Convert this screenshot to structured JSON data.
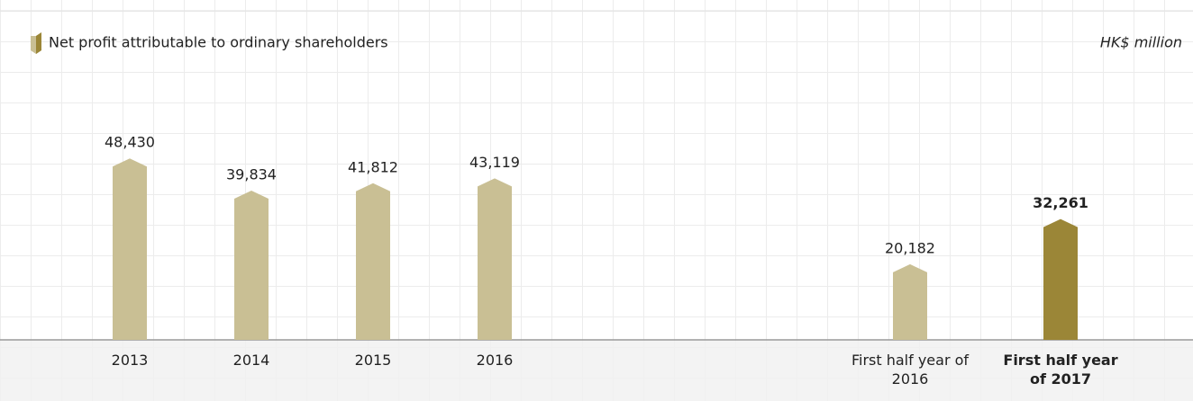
{
  "chart_data": {
    "type": "bar",
    "title": "Net profit attributable to ordinary shareholders",
    "unit_label": "HK$ million",
    "categories": [
      "2013",
      "2014",
      "2015",
      "2016",
      "First half year of 2016",
      "First half year of 2017"
    ],
    "values": [
      48430,
      39834,
      41812,
      43119,
      20182,
      32261
    ],
    "value_labels": [
      "48,430",
      "39,834",
      "41,812",
      "43,119",
      "20,182",
      "32,261"
    ],
    "colors": [
      "#c9bf94",
      "#c9bf94",
      "#c9bf94",
      "#c9bf94",
      "#c9bf94",
      "#9b8637"
    ],
    "highlight": [
      false,
      false,
      false,
      false,
      false,
      true
    ],
    "ylim": [
      0,
      60000
    ]
  }
}
